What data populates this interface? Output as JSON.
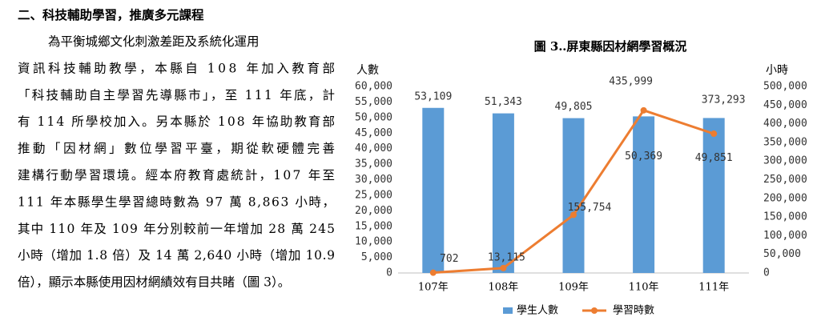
{
  "document": {
    "heading": "二、科技輔助學習，推廣多元課程",
    "lines": [
      "為平衡城鄉文化刺激差距及系統化運用",
      "資訊科技輔助教學，本縣自 108 年加入教育部",
      "「科技輔助自主學習先導縣市」，至 111 年底，計",
      "有 114 所學校加入。另本縣於 108 年協助教育部",
      "推動「因材網」數位學習平臺，期從軟硬體完善",
      "建構行動學習環境。經本府教育處統計，107 年至",
      "111 年本縣學生學習總時數為 97 萬 8,863 小時，",
      "其中 110 年及 109 年分別較前一年增加 28 萬 245",
      "小時（增加 1.8 倍）及 14 萬 2,640 小時（增加 10.9",
      "倍），顯示本縣使用因材網績效有目共睹（圖 3）。"
    ]
  },
  "chart_data": {
    "type": "bar-line",
    "title": "圖 3‥屏東縣因材網學習概況",
    "y_label": "人數",
    "y2_label": "小時",
    "categories": [
      "107年",
      "108年",
      "109年",
      "110年",
      "111年"
    ],
    "series": [
      {
        "name": "學生人數",
        "type": "bar",
        "color": "#5b9bd5",
        "values": [
          53109,
          51343,
          49805,
          50369,
          49851
        ],
        "value_labels": [
          "53,109",
          "51,343",
          "49,805",
          "50,369",
          "49,851"
        ]
      },
      {
        "name": "學習時數",
        "type": "line",
        "axis": "y2",
        "color": "#ed7d31",
        "values": [
          702,
          13115,
          155754,
          435999,
          373293
        ],
        "value_labels": [
          "702",
          "13,115",
          "155,754",
          "435,999",
          "373,293"
        ]
      }
    ],
    "ylim": [
      0,
      60000
    ],
    "yticks": [
      0,
      {
        "value": 5000,
        "label": "5,000"
      },
      {
        "value": 10000,
        "label": "10,000"
      },
      {
        "value": 15000,
        "label": "15,000"
      },
      {
        "value": 20000,
        "label": "20,000"
      },
      {
        "value": 25000,
        "label": "25,000"
      },
      {
        "value": 30000,
        "label": "30,000"
      },
      {
        "value": 35000,
        "label": "35,000"
      },
      {
        "value": 40000,
        "label": "40,000"
      },
      {
        "value": 45000,
        "label": "45,000"
      },
      {
        "value": 50000,
        "label": "50,000"
      },
      {
        "value": 55000,
        "label": "55,000"
      },
      {
        "value": 60000,
        "label": "60,000"
      }
    ],
    "y2lim": [
      0,
      500000
    ],
    "y2ticks": [
      0,
      {
        "value": 50000,
        "label": "50,000"
      },
      {
        "value": 100000,
        "label": "100,000"
      },
      {
        "value": 150000,
        "label": "150,000"
      },
      {
        "value": 200000,
        "label": "200,000"
      },
      {
        "value": 250000,
        "label": "250,000"
      },
      {
        "value": 300000,
        "label": "300,000"
      },
      {
        "value": 350000,
        "label": "350,000"
      },
      {
        "value": 400000,
        "label": "400,000"
      },
      {
        "value": 450000,
        "label": "450,000"
      },
      {
        "value": 500000,
        "label": "500,000"
      }
    ],
    "grid": false,
    "legend": "bottom"
  }
}
